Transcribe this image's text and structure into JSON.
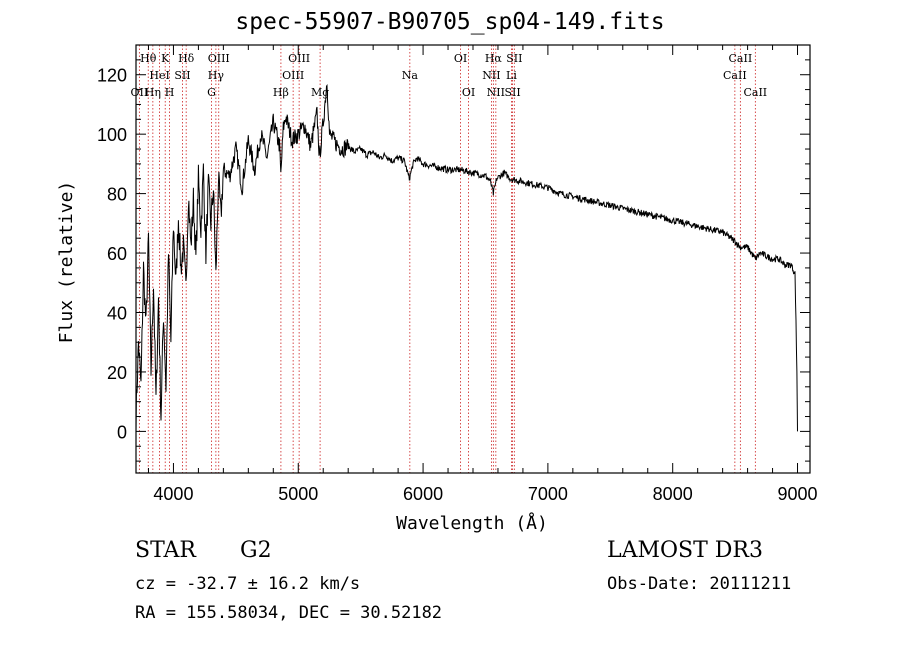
{
  "header": {
    "title": "spec-55907-B90705_sp04-149.fits"
  },
  "info": {
    "class": "STAR",
    "subclass": "G2",
    "survey": "LAMOST DR3",
    "cz": "cz = -32.7 ± 16.2 km/s",
    "obs_date": "Obs-Date: 20111211",
    "radec": "RA = 155.58034, DEC =  30.52182"
  },
  "colors": {
    "spectrum": "#000000",
    "lines": "#cc2222",
    "axes": "#000000"
  },
  "chart_data": {
    "type": "line",
    "title": "spec-55907-B90705_sp04-149.fits",
    "xlabel": "Wavelength (Å)",
    "ylabel": "Flux (relative)",
    "xlim": [
      3700,
      9100
    ],
    "ylim": [
      -14,
      130
    ],
    "xticks": [
      4000,
      5000,
      6000,
      7000,
      8000,
      9000
    ],
    "yticks": [
      0,
      20,
      40,
      60,
      80,
      100,
      120
    ],
    "series": [
      {
        "name": "spectrum",
        "x": [
          3700,
          3720,
          3740,
          3760,
          3780,
          3800,
          3820,
          3840,
          3860,
          3880,
          3900,
          3920,
          3940,
          3960,
          3980,
          4000,
          4020,
          4040,
          4060,
          4080,
          4100,
          4120,
          4140,
          4160,
          4180,
          4200,
          4220,
          4240,
          4260,
          4280,
          4300,
          4320,
          4340,
          4360,
          4380,
          4400,
          4450,
          4500,
          4550,
          4600,
          4650,
          4700,
          4750,
          4800,
          4850,
          4860,
          4880,
          4900,
          4950,
          5000,
          5050,
          5100,
          5150,
          5170,
          5200,
          5230,
          5250,
          5300,
          5350,
          5400,
          5450,
          5500,
          5550,
          5600,
          5650,
          5700,
          5750,
          5800,
          5850,
          5890,
          5920,
          5950,
          6000,
          6100,
          6200,
          6300,
          6400,
          6500,
          6540,
          6563,
          6590,
          6650,
          6700,
          6800,
          6900,
          7000,
          7100,
          7200,
          7300,
          7400,
          7500,
          7600,
          7700,
          7800,
          7900,
          8000,
          8100,
          8200,
          8300,
          8400,
          8498,
          8540,
          8600,
          8662,
          8700,
          8800,
          8850,
          8900,
          8950,
          8980,
          8995,
          9000
        ],
        "y": [
          5,
          30,
          15,
          55,
          35,
          65,
          20,
          50,
          10,
          45,
          5,
          40,
          15,
          60,
          30,
          70,
          50,
          72,
          55,
          62,
          48,
          80,
          62,
          78,
          58,
          85,
          68,
          88,
          60,
          83,
          70,
          82,
          52,
          85,
          72,
          88,
          86,
          95,
          82,
          98,
          88,
          100,
          92,
          104,
          96,
          86,
          102,
          106,
          98,
          100,
          103,
          96,
          107,
          92,
          104,
          118,
          100,
          97,
          95,
          96,
          94,
          95,
          93,
          94,
          92,
          93,
          91,
          92,
          91,
          85,
          90,
          92,
          90,
          89,
          88,
          88,
          87,
          86,
          84,
          80,
          85,
          87,
          85,
          84,
          83,
          82,
          80,
          79,
          78,
          77,
          76,
          75,
          74,
          73,
          72,
          71,
          70,
          69,
          68,
          67,
          64,
          62,
          62,
          58,
          60,
          58,
          58,
          56,
          56,
          53,
          20,
          0
        ]
      }
    ],
    "lines": [
      {
        "name": "Hθ",
        "wave": 3798,
        "row": 1
      },
      {
        "name": "Hη",
        "wave": 3835,
        "row": 3
      },
      {
        "name": "OII",
        "wave": 3727,
        "row": 3
      },
      {
        "name": "HeI",
        "wave": 3889,
        "row": 2
      },
      {
        "name": "K",
        "wave": 3934,
        "row": 1
      },
      {
        "name": "H",
        "wave": 3969,
        "row": 3
      },
      {
        "name": "SII",
        "wave": 4072,
        "row": 2
      },
      {
        "name": "Hδ",
        "wave": 4102,
        "row": 1
      },
      {
        "name": "Hγ",
        "wave": 4340,
        "row": 2
      },
      {
        "name": "G",
        "wave": 4305,
        "row": 3
      },
      {
        "name": "OIII",
        "wave": 4363,
        "row": 1
      },
      {
        "name": "Hβ",
        "wave": 4861,
        "row": 3
      },
      {
        "name": "OIII",
        "wave": 4959,
        "row": 2
      },
      {
        "name": "OIII",
        "wave": 5007,
        "row": 1
      },
      {
        "name": "Mg",
        "wave": 5175,
        "row": 3
      },
      {
        "name": "Na",
        "wave": 5894,
        "row": 2
      },
      {
        "name": "OI",
        "wave": 6300,
        "row": 1
      },
      {
        "name": "OI",
        "wave": 6364,
        "row": 3
      },
      {
        "name": "NII",
        "wave": 6548,
        "row": 2
      },
      {
        "name": "Hα",
        "wave": 6563,
        "row": 1
      },
      {
        "name": "NII",
        "wave": 6583,
        "row": 3
      },
      {
        "name": "SII",
        "wave": 6717,
        "row": 3
      },
      {
        "name": "SII",
        "wave": 6731,
        "row": 1
      },
      {
        "name": "Li",
        "wave": 6708,
        "row": 2
      },
      {
        "name": "CaII",
        "wave": 8498,
        "row": 2
      },
      {
        "name": "CaII",
        "wave": 8542,
        "row": 1
      },
      {
        "name": "CaII",
        "wave": 8662,
        "row": 3
      }
    ]
  }
}
